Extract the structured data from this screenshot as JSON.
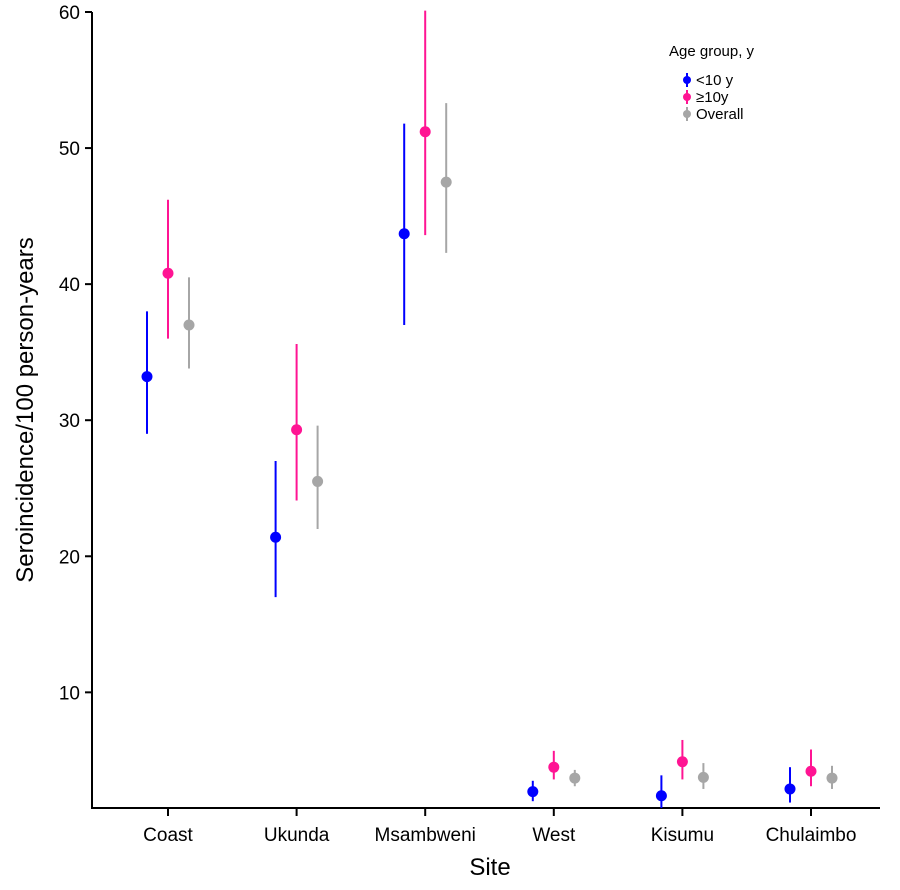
{
  "chart_data": {
    "type": "scatter",
    "title": "",
    "xlabel": "Site",
    "ylabel": "Seroincidence/100 person-years",
    "ylim": [
      1.5,
      60
    ],
    "yticks": [
      10,
      20,
      30,
      40,
      50,
      60
    ],
    "grid": false,
    "legend": {
      "title": "Age group, y",
      "placement": "top-right"
    },
    "categories": [
      "Coast",
      "Ukunda",
      "Msambweni",
      "West",
      "Kisumu",
      "Chulaimbo"
    ],
    "series": [
      {
        "name": "<10 y",
        "color": "#0000ff",
        "values": [
          33.2,
          21.4,
          43.7,
          2.7,
          2.4,
          2.9
        ],
        "lower": [
          29.0,
          17.0,
          37.0,
          2.0,
          1.5,
          1.9
        ],
        "upper": [
          38.0,
          27.0,
          51.8,
          3.5,
          3.9,
          4.5
        ]
      },
      {
        "name": "≥10y",
        "color": "#ff1493",
        "values": [
          40.8,
          29.3,
          51.2,
          4.5,
          4.9,
          4.2
        ],
        "lower": [
          36.0,
          24.1,
          43.6,
          3.6,
          3.6,
          3.1
        ],
        "upper": [
          46.2,
          35.6,
          60.1,
          5.7,
          6.5,
          5.8
        ]
      },
      {
        "name": "Overall",
        "color": "#a6a6a6",
        "values": [
          37.0,
          25.5,
          47.5,
          3.7,
          3.75,
          3.7
        ],
        "lower": [
          33.8,
          22.0,
          42.3,
          3.1,
          2.9,
          2.9
        ],
        "upper": [
          40.5,
          29.6,
          53.3,
          4.3,
          4.8,
          4.6
        ]
      }
    ]
  }
}
